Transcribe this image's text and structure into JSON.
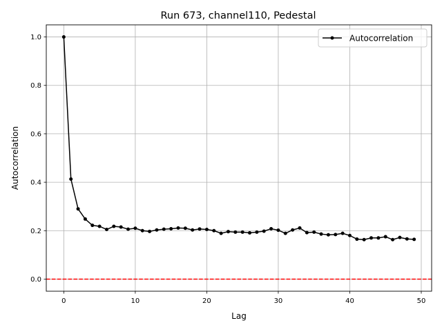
{
  "chart_data": {
    "type": "line",
    "title": "Run 673, channel110, Pedestal",
    "xlabel": "Lag",
    "ylabel": "Autocorrelation",
    "xlim": [
      -2.45,
      51.45
    ],
    "ylim": [
      -0.05,
      1.05
    ],
    "xticks": [
      0,
      10,
      20,
      30,
      40,
      50
    ],
    "xtick_labels": [
      "0",
      "10",
      "20",
      "30",
      "40",
      "50"
    ],
    "yticks": [
      0.0,
      0.2,
      0.4,
      0.6,
      0.8,
      1.0
    ],
    "ytick_labels": [
      "0.0",
      "0.2",
      "0.4",
      "0.6",
      "0.8",
      "1.0"
    ],
    "grid": true,
    "legend": {
      "position": "top-right",
      "entries": [
        "Autocorrelation"
      ]
    },
    "series": [
      {
        "name": "Autocorrelation",
        "color": "#000000",
        "x": [
          0,
          1,
          2,
          3,
          4,
          5,
          6,
          7,
          8,
          9,
          10,
          11,
          12,
          13,
          14,
          15,
          16,
          17,
          18,
          19,
          20,
          21,
          22,
          23,
          24,
          25,
          26,
          27,
          28,
          29,
          30,
          31,
          32,
          33,
          34,
          35,
          36,
          37,
          38,
          39,
          40,
          41,
          42,
          43,
          44,
          45,
          46,
          47,
          48,
          49
        ],
        "values": [
          1.0,
          0.413,
          0.29,
          0.248,
          0.222,
          0.218,
          0.205,
          0.218,
          0.215,
          0.206,
          0.21,
          0.2,
          0.197,
          0.203,
          0.206,
          0.208,
          0.211,
          0.21,
          0.203,
          0.207,
          0.205,
          0.2,
          0.189,
          0.196,
          0.194,
          0.194,
          0.191,
          0.194,
          0.198,
          0.208,
          0.202,
          0.189,
          0.203,
          0.211,
          0.192,
          0.194,
          0.186,
          0.183,
          0.184,
          0.189,
          0.18,
          0.165,
          0.163,
          0.17,
          0.17,
          0.175,
          0.163,
          0.172,
          0.166,
          0.164
        ]
      }
    ],
    "reference_line": {
      "y": 0,
      "color": "#ff0000",
      "style": "dashed"
    }
  }
}
